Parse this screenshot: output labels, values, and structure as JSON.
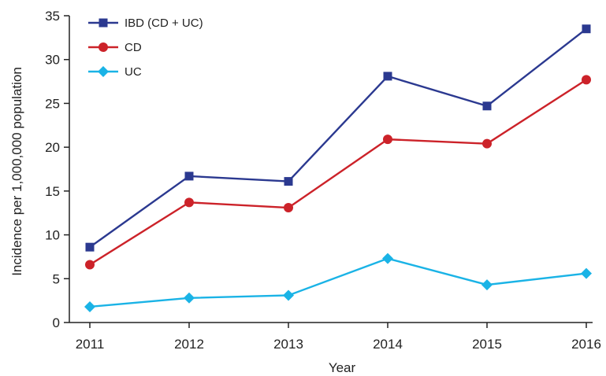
{
  "chart_data": {
    "type": "line",
    "title": "",
    "xlabel": "Year",
    "ylabel": "Incidence per 1,000,000 population",
    "categories": [
      "2011",
      "2012",
      "2013",
      "2014",
      "2015",
      "2016"
    ],
    "ylim": [
      0,
      35
    ],
    "yticks": [
      0,
      5,
      10,
      15,
      20,
      25,
      30,
      35
    ],
    "grid": false,
    "legend_position": "top-left",
    "series": [
      {
        "name": "IBD (CD + UC)",
        "color": "#2b3990",
        "marker": "square",
        "values": [
          8.6,
          16.7,
          16.1,
          28.1,
          24.7,
          33.5
        ]
      },
      {
        "name": "CD",
        "color": "#cc2229",
        "marker": "circle",
        "values": [
          6.6,
          13.7,
          13.1,
          20.9,
          20.4,
          27.7
        ]
      },
      {
        "name": "UC",
        "color": "#1ab3e6",
        "marker": "diamond",
        "values": [
          1.8,
          2.8,
          3.1,
          7.3,
          4.3,
          5.6
        ]
      }
    ]
  }
}
